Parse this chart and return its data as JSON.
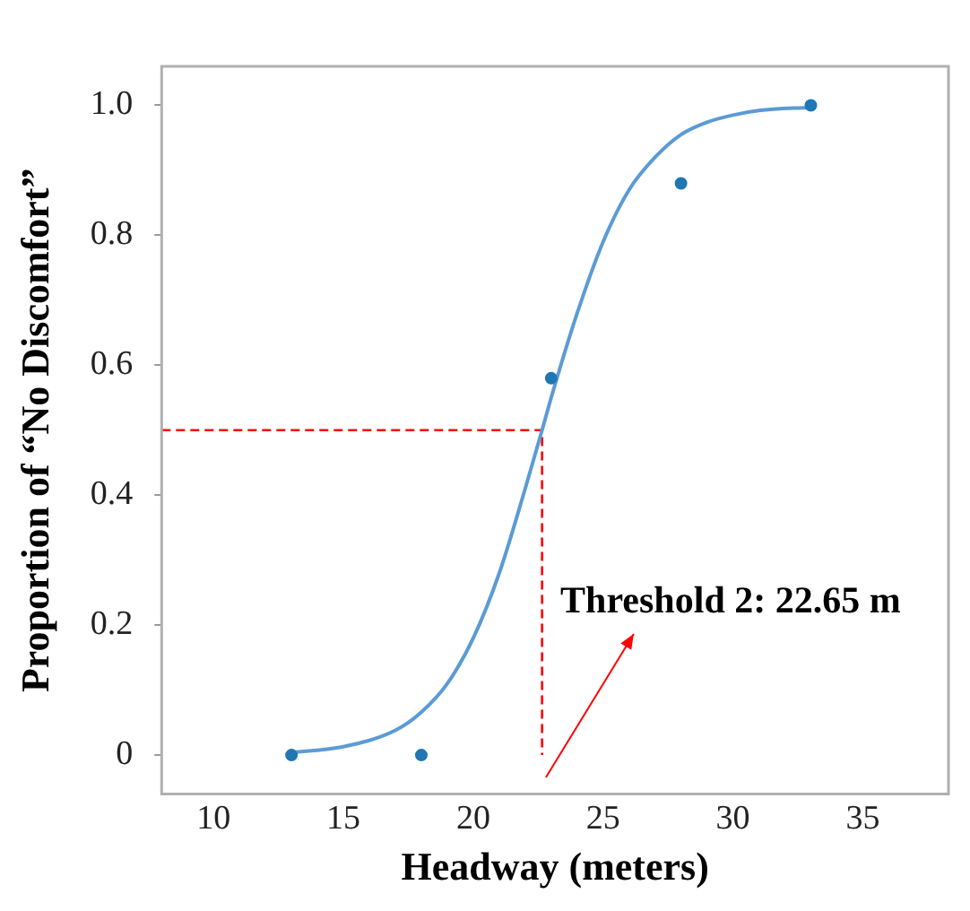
{
  "chart_data": {
    "type": "scatter",
    "xlabel": "Headway (meters)",
    "ylabel": "Proportion of “No Discomfort”",
    "xlim": [
      8,
      38.3
    ],
    "ylim": [
      -0.06,
      1.06
    ],
    "xticks": [
      10,
      15,
      20,
      25,
      30,
      35
    ],
    "yticks": [
      0,
      {
        "value": 0.2,
        "label": "0.2"
      },
      {
        "value": 0.4,
        "label": "0.4"
      },
      {
        "value": 0.6,
        "label": "0.6"
      },
      {
        "value": 0.8,
        "label": "0.8"
      },
      {
        "value": 1,
        "label": "1.0"
      }
    ],
    "grid": false,
    "legend": false,
    "marker": "circle",
    "series": [
      {
        "color": "#1f77b4",
        "x": [
          13,
          18,
          23,
          28,
          33
        ],
        "values": [
          0,
          0,
          0.58,
          0.88,
          1.0
        ]
      },
      {
        "type": "line",
        "color": "#5b9bd5",
        "marker": "none",
        "x": [
          13,
          15,
          17,
          18,
          19,
          20,
          21,
          22,
          22.65,
          23,
          24,
          25,
          26,
          27,
          28,
          29,
          30,
          31,
          33
        ],
        "values": [
          0.004,
          0.013,
          0.038,
          0.066,
          0.11,
          0.18,
          0.28,
          0.41,
          0.5,
          0.55,
          0.68,
          0.79,
          0.87,
          0.92,
          0.955,
          0.974,
          0.985,
          0.992,
          0.997
        ]
      },
      {
        "type": "line",
        "color": "#ff0000",
        "marker": "none",
        "line_style": "dashed",
        "x": [
          8,
          22.65,
          22.65
        ],
        "values": [
          0.5,
          0.5,
          0
        ]
      }
    ],
    "annotations": [
      "Threshold 2: 22.65 m"
    ]
  }
}
